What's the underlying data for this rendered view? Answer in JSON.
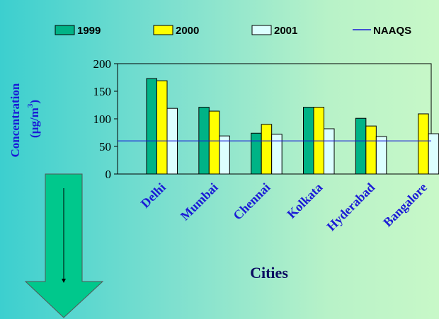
{
  "chart_data": {
    "type": "bar",
    "categories": [
      "Delhi",
      "Mumbai",
      "Chennai",
      "Kolkata",
      "Hyderabad",
      "Bangalore"
    ],
    "series": [
      {
        "name": "1999",
        "color": "#00b386",
        "values": [
          173,
          121,
          74,
          121,
          101,
          null
        ]
      },
      {
        "name": "2000",
        "color": "#ffff00",
        "values": [
          169,
          114,
          90,
          121,
          87,
          109
        ]
      },
      {
        "name": "2001",
        "color": "#dcffff",
        "values": [
          119,
          69,
          72,
          82,
          68,
          73
        ]
      }
    ],
    "reference_line": {
      "name": "NAAQS",
      "value": 60,
      "color": "#1a1ad6"
    },
    "xlabel": "Cities",
    "ylabel_main": "Concentration",
    "ylabel_unit": "(µg/m",
    "ylabel_sup": "3",
    "ylabel_close": ")",
    "ylim": [
      0,
      200
    ],
    "yticks": [
      0,
      50,
      100,
      150,
      200
    ],
    "ytick_labels": [
      "0",
      "50",
      "100",
      "150",
      "200"
    ],
    "grid": false,
    "legend_position": "top"
  },
  "decoration": {
    "arrow": "down-arrow-icon",
    "arrow_color": "#00c88c"
  }
}
